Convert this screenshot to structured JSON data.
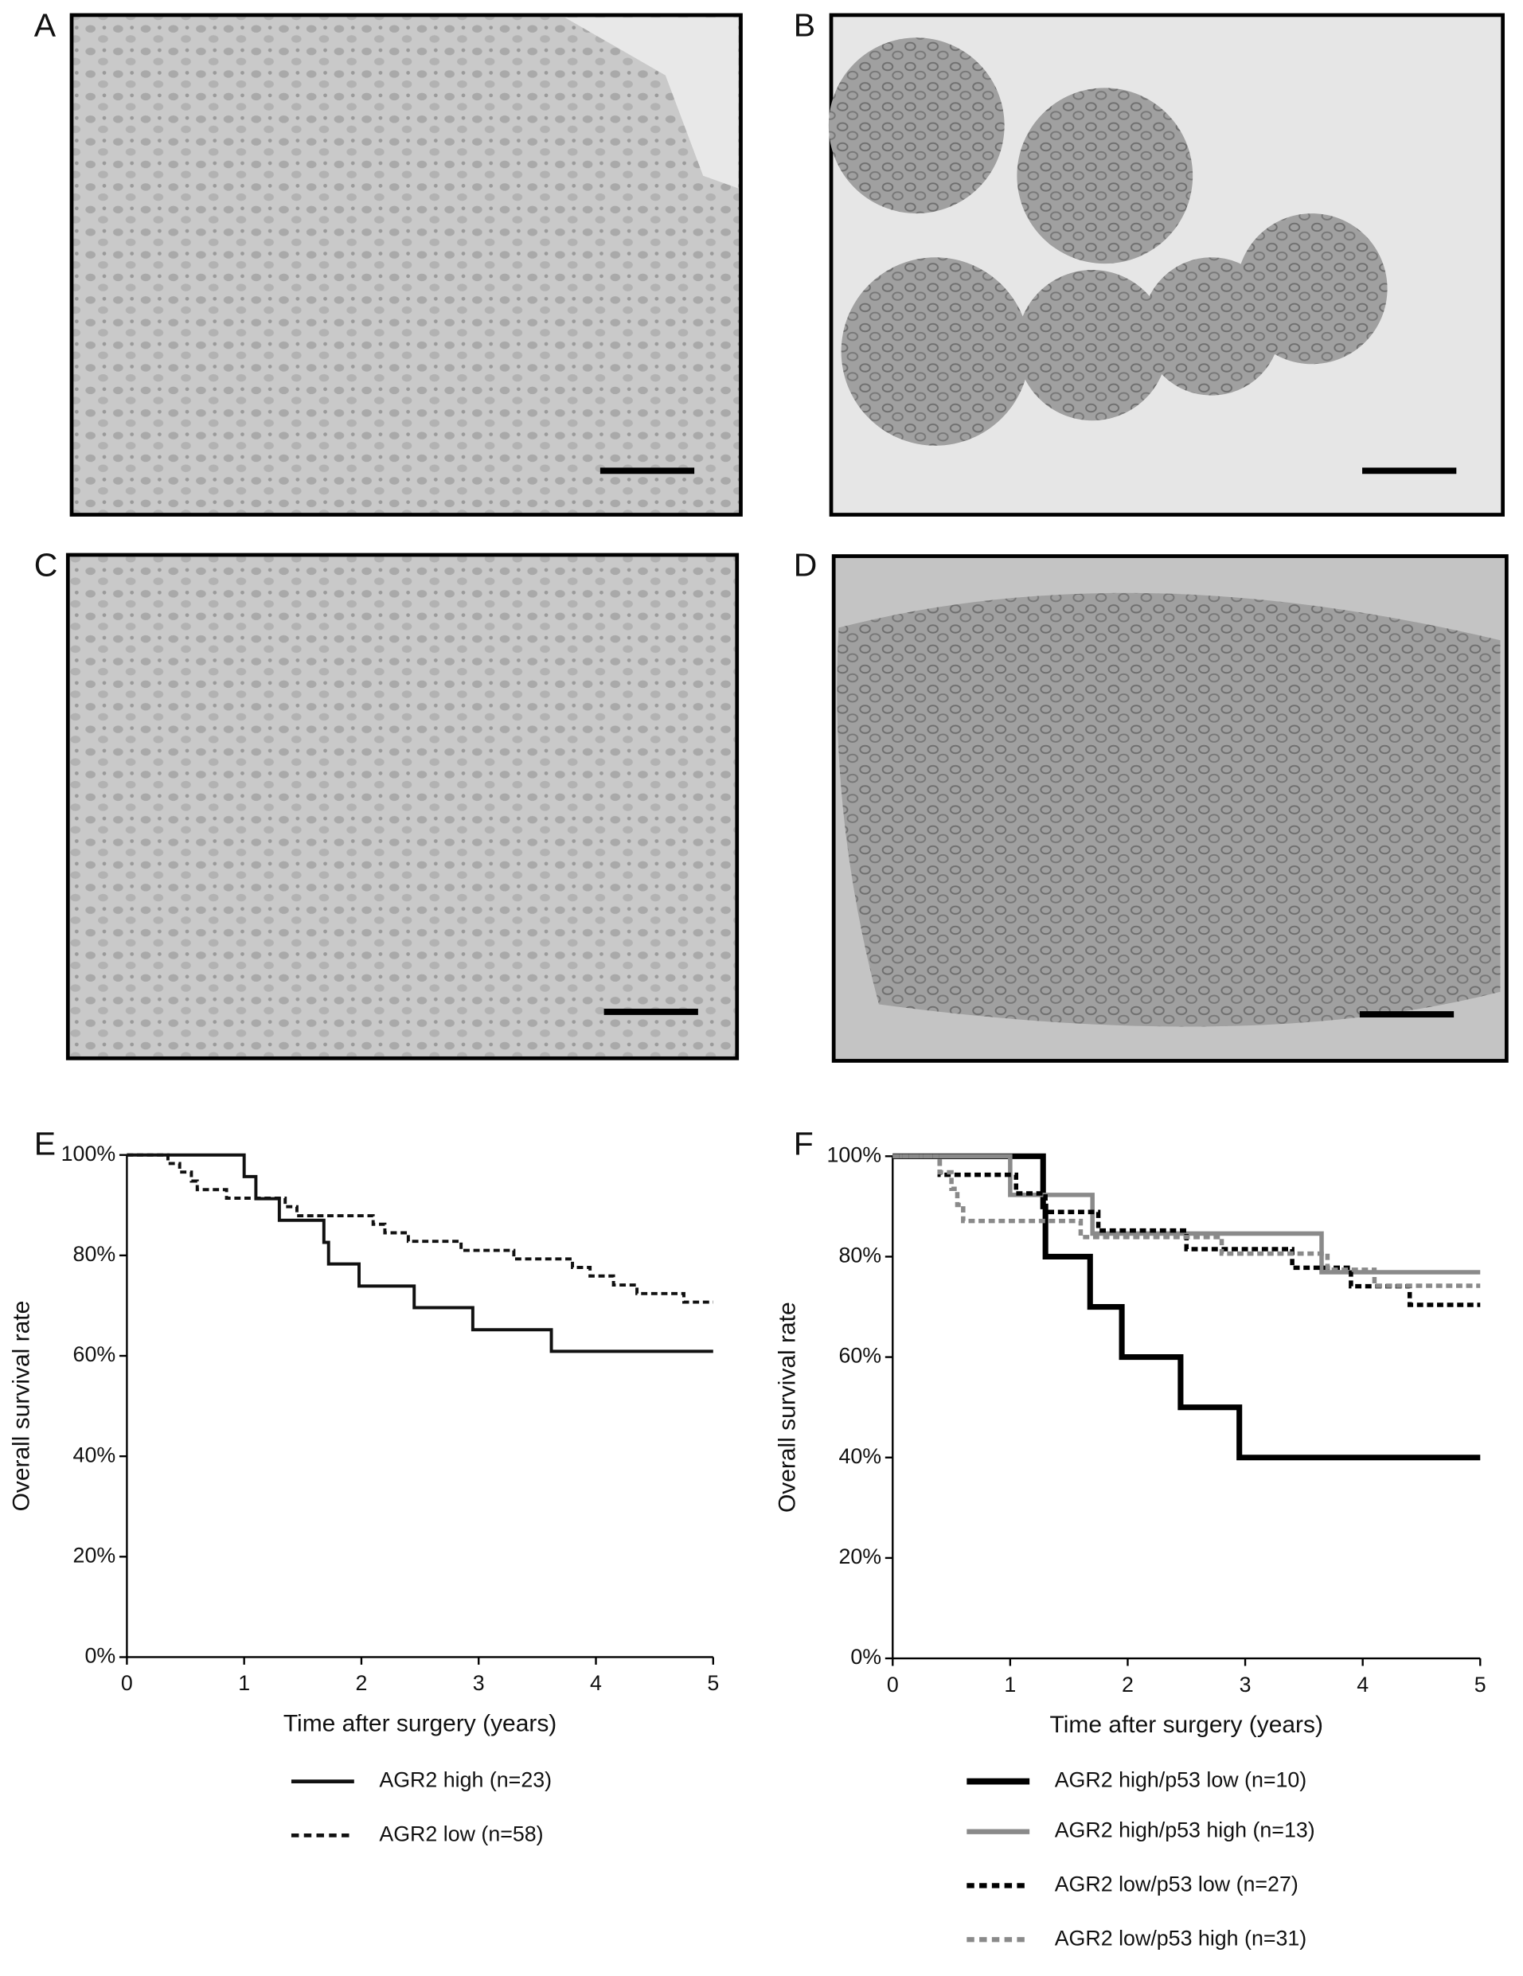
{
  "panel_labels": [
    "A",
    "B",
    "C",
    "D",
    "E",
    "F"
  ],
  "chart_data": [
    {
      "type": "line",
      "steps": true,
      "xlabel": "Time after surgery (years)",
      "ylabel": "Overall survival rate",
      "xlim": [
        0,
        5
      ],
      "xticks": [
        0,
        1,
        2,
        3,
        4,
        5
      ],
      "ylim": [
        0,
        100
      ],
      "yticks": [
        {
          "value": 0,
          "label": "0%"
        },
        {
          "value": 20,
          "label": "20%"
        },
        {
          "value": 40,
          "label": "40%"
        },
        {
          "value": 60,
          "label": "60%"
        },
        {
          "value": 80,
          "label": "80%"
        },
        {
          "value": 100,
          "label": "100%"
        }
      ],
      "series": [
        {
          "name": "AGR2 high (n=23)",
          "color": "#111111",
          "dash": false,
          "width": 2.5,
          "x": [
            0,
            1.0,
            1.1,
            1.3,
            1.68,
            1.72,
            1.98,
            2.45,
            2.95,
            3.62,
            5
          ],
          "values": [
            100,
            95.7,
            91.3,
            87,
            82.6,
            78.3,
            73.9,
            69.6,
            65.2,
            60.9,
            60.9
          ]
        },
        {
          "name": "AGR2 low (n=58)",
          "color": "#111111",
          "dash": true,
          "width": 2.5,
          "x": [
            0,
            0.35,
            0.45,
            0.55,
            0.6,
            0.85,
            1.35,
            1.45,
            2.1,
            2.2,
            2.4,
            2.85,
            3.3,
            3.8,
            3.95,
            4.15,
            4.35,
            4.75,
            5
          ],
          "values": [
            100,
            98.3,
            96.6,
            94.8,
            93.1,
            91.4,
            89.7,
            87.9,
            86.2,
            84.5,
            82.8,
            81,
            79.3,
            77.6,
            75.9,
            74.1,
            72.4,
            70.7,
            70.7
          ]
        }
      ]
    },
    {
      "type": "line",
      "steps": true,
      "xlabel": "Time after surgery (years)",
      "ylabel": "Overall survival rate",
      "xlim": [
        0,
        5
      ],
      "xticks": [
        0,
        1,
        2,
        3,
        4,
        5
      ],
      "ylim": [
        0,
        100
      ],
      "yticks": [
        {
          "value": 0,
          "label": "0%"
        },
        {
          "value": 20,
          "label": "20%"
        },
        {
          "value": 40,
          "label": "40%"
        },
        {
          "value": 60,
          "label": "60%"
        },
        {
          "value": 80,
          "label": "80%"
        },
        {
          "value": 100,
          "label": "100%"
        }
      ],
      "series": [
        {
          "name": "AGR2 high/p53 low (n=10)",
          "color": "#000000",
          "dash": false,
          "width": 4.5,
          "x": [
            0,
            1.28,
            1.3,
            1.68,
            1.95,
            2.45,
            2.95,
            5
          ],
          "values": [
            100,
            90,
            80,
            70,
            60,
            50,
            40,
            40
          ]
        },
        {
          "name": "AGR2 high/p53 high (n=13)",
          "color": "#8a8a8a",
          "dash": false,
          "width": 3.5,
          "x": [
            0,
            1.0,
            1.7,
            3.65,
            5
          ],
          "values": [
            100,
            92.3,
            84.6,
            76.9,
            76.9
          ]
        },
        {
          "name": "AGR2 low/p53 low (n=27)",
          "color": "#000000",
          "dash": true,
          "width": 3.5,
          "x": [
            0,
            0.4,
            1.05,
            1.3,
            1.75,
            2.5,
            3.4,
            3.9,
            4.4,
            5
          ],
          "values": [
            100,
            96.3,
            92.6,
            88.9,
            85.2,
            81.5,
            77.8,
            74.1,
            70.4,
            70.4
          ]
        },
        {
          "name": "AGR2 low/p53 high (n=31)",
          "color": "#8a8a8a",
          "dash": true,
          "width": 3.5,
          "x": [
            0,
            0.4,
            0.5,
            0.55,
            0.6,
            1.6,
            2.8,
            3.7,
            4.1,
            5
          ],
          "values": [
            100,
            96.8,
            93.5,
            90.3,
            87.1,
            83.9,
            80.6,
            77.4,
            74.2,
            74.2
          ]
        }
      ]
    }
  ]
}
